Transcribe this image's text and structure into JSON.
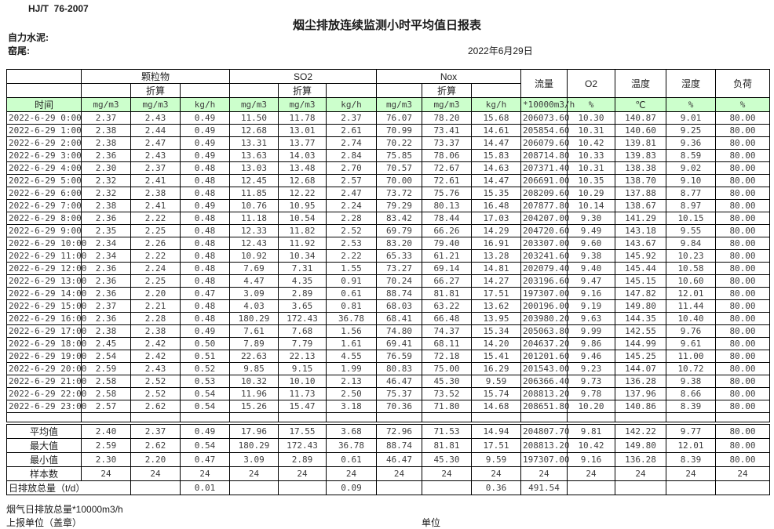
{
  "page": {
    "standard": "HJ/T  76-2007",
    "title": "烟尘排放连续监测小时平均值日报表",
    "company": "自力水泥:",
    "location": "窑尾:",
    "date": "2022年6月29日"
  },
  "colors": {
    "header_green": "#ccffcc",
    "border": "#000000"
  },
  "table": {
    "groups": {
      "pm": "颗粒物",
      "so2": "SO2",
      "nox": "Nox",
      "conv": "折算",
      "flow": "流量",
      "o2": "O2",
      "temp": "温度",
      "humidity": "湿度",
      "load": "负荷"
    },
    "units_row": [
      "时间",
      "mg/m3",
      "mg/m3",
      "kg/h",
      "mg/m3",
      "mg/m3",
      "kg/h",
      "mg/m3",
      "mg/m3",
      "kg/h",
      "*10000m3/h",
      "%",
      "℃",
      "%",
      "%"
    ],
    "rows": [
      [
        "2022-6-29 0:00",
        "2.37",
        "2.43",
        "0.49",
        "11.50",
        "11.78",
        "2.37",
        "76.07",
        "78.20",
        "15.68",
        "206073.60",
        "10.30",
        "140.87",
        "9.01",
        "80.00"
      ],
      [
        "2022-6-29 1:00",
        "2.38",
        "2.44",
        "0.49",
        "12.68",
        "13.01",
        "2.61",
        "70.99",
        "73.41",
        "14.61",
        "205854.60",
        "10.31",
        "140.60",
        "9.25",
        "80.00"
      ],
      [
        "2022-6-29 2:00",
        "2.38",
        "2.47",
        "0.49",
        "13.31",
        "13.77",
        "2.74",
        "70.22",
        "73.37",
        "14.47",
        "206079.60",
        "10.42",
        "139.81",
        "9.36",
        "80.00"
      ],
      [
        "2022-6-29 3:00",
        "2.36",
        "2.43",
        "0.49",
        "13.63",
        "14.03",
        "2.84",
        "75.85",
        "78.06",
        "15.83",
        "208714.80",
        "10.33",
        "139.83",
        "8.59",
        "80.00"
      ],
      [
        "2022-6-29 4:00",
        "2.30",
        "2.37",
        "0.48",
        "13.03",
        "13.48",
        "2.70",
        "70.57",
        "72.67",
        "14.63",
        "207371.40",
        "10.31",
        "138.38",
        "9.02",
        "80.00"
      ],
      [
        "2022-6-29 5:00",
        "2.32",
        "2.41",
        "0.48",
        "12.45",
        "12.68",
        "2.57",
        "70.00",
        "72.61",
        "14.47",
        "206691.00",
        "10.35",
        "138.70",
        "9.10",
        "80.00"
      ],
      [
        "2022-6-29 6:00",
        "2.32",
        "2.38",
        "0.48",
        "11.85",
        "12.22",
        "2.47",
        "73.72",
        "75.76",
        "15.35",
        "208209.60",
        "10.29",
        "137.88",
        "8.77",
        "80.00"
      ],
      [
        "2022-6-29 7:00",
        "2.38",
        "2.41",
        "0.49",
        "10.76",
        "10.95",
        "2.24",
        "79.29",
        "80.13",
        "16.48",
        "207877.80",
        "10.14",
        "138.67",
        "8.97",
        "80.00"
      ],
      [
        "2022-6-29 8:00",
        "2.36",
        "2.22",
        "0.48",
        "11.18",
        "10.54",
        "2.28",
        "83.42",
        "78.44",
        "17.03",
        "204207.00",
        "9.30",
        "141.29",
        "10.15",
        "80.00"
      ],
      [
        "2022-6-29 9:00",
        "2.35",
        "2.25",
        "0.48",
        "12.33",
        "11.82",
        "2.52",
        "69.79",
        "66.26",
        "14.29",
        "204720.60",
        "9.49",
        "143.18",
        "9.55",
        "80.00"
      ],
      [
        "2022-6-29 10:00",
        "2.34",
        "2.26",
        "0.48",
        "12.43",
        "11.92",
        "2.53",
        "83.20",
        "79.40",
        "16.91",
        "203307.00",
        "9.60",
        "143.67",
        "9.84",
        "80.00"
      ],
      [
        "2022-6-29 11:00",
        "2.34",
        "2.22",
        "0.48",
        "10.92",
        "10.34",
        "2.22",
        "65.33",
        "61.21",
        "13.28",
        "203241.60",
        "9.38",
        "145.92",
        "10.23",
        "80.00"
      ],
      [
        "2022-6-29 12:00",
        "2.36",
        "2.24",
        "0.48",
        "7.69",
        "7.31",
        "1.55",
        "73.27",
        "69.14",
        "14.81",
        "202079.40",
        "9.40",
        "145.44",
        "10.58",
        "80.00"
      ],
      [
        "2022-6-29 13:00",
        "2.36",
        "2.25",
        "0.48",
        "4.47",
        "4.35",
        "0.91",
        "70.24",
        "66.27",
        "14.27",
        "203196.60",
        "9.47",
        "145.15",
        "10.60",
        "80.00"
      ],
      [
        "2022-6-29 14:00",
        "2.36",
        "2.20",
        "0.47",
        "3.09",
        "2.89",
        "0.61",
        "88.74",
        "81.81",
        "17.51",
        "197307.00",
        "9.16",
        "147.82",
        "12.01",
        "80.00"
      ],
      [
        "2022-6-29 15:00",
        "2.37",
        "2.21",
        "0.48",
        "4.03",
        "3.65",
        "0.81",
        "68.03",
        "63.22",
        "13.62",
        "200196.00",
        "9.19",
        "149.80",
        "11.44",
        "80.00"
      ],
      [
        "2022-6-29 16:00",
        "2.36",
        "2.28",
        "0.48",
        "180.29",
        "172.43",
        "36.78",
        "68.41",
        "66.48",
        "13.95",
        "203980.20",
        "9.63",
        "144.35",
        "10.40",
        "80.00"
      ],
      [
        "2022-6-29 17:00",
        "2.38",
        "2.38",
        "0.49",
        "7.61",
        "7.68",
        "1.56",
        "74.80",
        "74.37",
        "15.34",
        "205063.80",
        "9.99",
        "142.55",
        "9.76",
        "80.00"
      ],
      [
        "2022-6-29 18:00",
        "2.45",
        "2.42",
        "0.50",
        "7.89",
        "7.79",
        "1.61",
        "69.41",
        "68.11",
        "14.20",
        "204637.20",
        "9.86",
        "144.99",
        "9.61",
        "80.00"
      ],
      [
        "2022-6-29 19:00",
        "2.54",
        "2.42",
        "0.51",
        "22.63",
        "22.13",
        "4.55",
        "76.59",
        "72.18",
        "15.41",
        "201201.60",
        "9.46",
        "145.25",
        "11.00",
        "80.00"
      ],
      [
        "2022-6-29 20:00",
        "2.59",
        "2.43",
        "0.52",
        "9.85",
        "9.15",
        "1.99",
        "80.83",
        "75.00",
        "16.29",
        "201543.00",
        "9.23",
        "144.07",
        "10.72",
        "80.00"
      ],
      [
        "2022-6-29 21:00",
        "2.58",
        "2.52",
        "0.53",
        "10.32",
        "10.10",
        "2.13",
        "46.47",
        "45.30",
        "9.59",
        "206366.40",
        "9.73",
        "136.28",
        "9.38",
        "80.00"
      ],
      [
        "2022-6-29 22:00",
        "2.58",
        "2.52",
        "0.54",
        "11.96",
        "11.73",
        "2.50",
        "75.37",
        "73.52",
        "15.74",
        "208813.20",
        "9.78",
        "137.96",
        "8.66",
        "80.00"
      ],
      [
        "2022-6-29 23:00",
        "2.57",
        "2.62",
        "0.54",
        "15.26",
        "15.47",
        "3.18",
        "70.36",
        "71.80",
        "14.68",
        "208651.80",
        "10.20",
        "140.86",
        "8.39",
        "80.00"
      ]
    ],
    "summary_rows": [
      {
        "label": "平均值",
        "label_colspan": 1,
        "values": [
          "2.40",
          "2.37",
          "0.49",
          "17.96",
          "17.55",
          "3.68",
          "72.96",
          "71.53",
          "14.94",
          "204807.70",
          "9.81",
          "142.22",
          "9.77",
          "80.00"
        ]
      },
      {
        "label": "最大值",
        "label_colspan": 1,
        "values": [
          "2.59",
          "2.62",
          "0.54",
          "180.29",
          "172.43",
          "36.78",
          "88.74",
          "81.81",
          "17.51",
          "208813.20",
          "10.42",
          "149.80",
          "12.01",
          "80.00"
        ]
      },
      {
        "label": "最小值",
        "label_colspan": 1,
        "values": [
          "2.30",
          "2.20",
          "0.47",
          "3.09",
          "2.89",
          "0.61",
          "46.47",
          "45.30",
          "9.59",
          "197307.00",
          "9.16",
          "136.28",
          "8.39",
          "80.00"
        ]
      },
      {
        "label": "样本数",
        "label_colspan": 1,
        "values": [
          "24",
          "24",
          "24",
          "24",
          "24",
          "24",
          "24",
          "24",
          "24",
          "24",
          "24",
          "24",
          "24",
          "24"
        ]
      },
      {
        "label": "日排放总量（t/d）",
        "label_colspan": 2,
        "values": [
          "",
          "0.01",
          "",
          "",
          "0.09",
          "",
          "",
          "0.36",
          "491.54",
          "",
          "",
          "",
          ""
        ]
      }
    ]
  },
  "footer": {
    "flow_note": "烟气日排放总量*10000m3/h",
    "report_unit": "上报单位（盖章）",
    "unit": "单位"
  }
}
